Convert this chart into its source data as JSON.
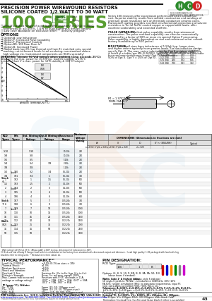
{
  "bg": "#ffffff",
  "title1": "PRECISION POWER WIREWOUND RESISTORS",
  "title2": "SILICONE COATED 1/2 WATT TO 50 WATT",
  "series": "100 SERIES",
  "green": "#5a9e32",
  "logo_colors": [
    "#2b8a2b",
    "#2b8a2b",
    "#cc2222"
  ],
  "logo_letters": [
    "H",
    "C",
    "D"
  ],
  "page_num": "43",
  "footer": "RCD Components Inc.  520 E. Industrial Park Dr. Manchester, NH  USA 03109",
  "footer2": "rcdcomponents.com  Tel 603-669-0054  Fax 603-669-5455  Email sales@rcdcomponents.com"
}
